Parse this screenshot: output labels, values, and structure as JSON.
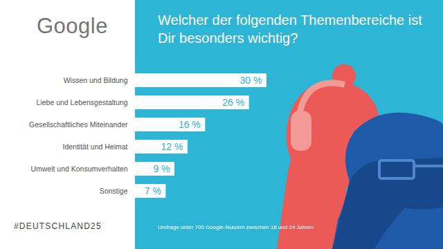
{
  "logo": "Google",
  "hashtag": "#DEUTSCHLAND25",
  "chart_data": {
    "type": "bar",
    "title": "Welcher der folgenden Themenbereiche ist Dir besonders wichtig?",
    "caption": "Umfrage unter 700 Google-Nutzern zwischen 18 und 24 Jahren",
    "orientation": "horizontal",
    "categories": [
      "Wissen und Bildung",
      "Liebe und Lebensgestaltung",
      "Gesellschaftliches Miteinander",
      "Identität und Heimat",
      "Umwelt und Konsumverhalten",
      "Sonstige"
    ],
    "values": [
      30,
      26,
      16,
      12,
      9,
      7
    ],
    "value_labels": [
      "30 %",
      "26 %",
      "16 %",
      "12 %",
      "9 %",
      "7 %"
    ],
    "data_labels": true,
    "tick_labels": "y",
    "color": "#ffffff",
    "xlim": [
      0,
      30
    ],
    "xticks": [],
    "grid": false
  }
}
